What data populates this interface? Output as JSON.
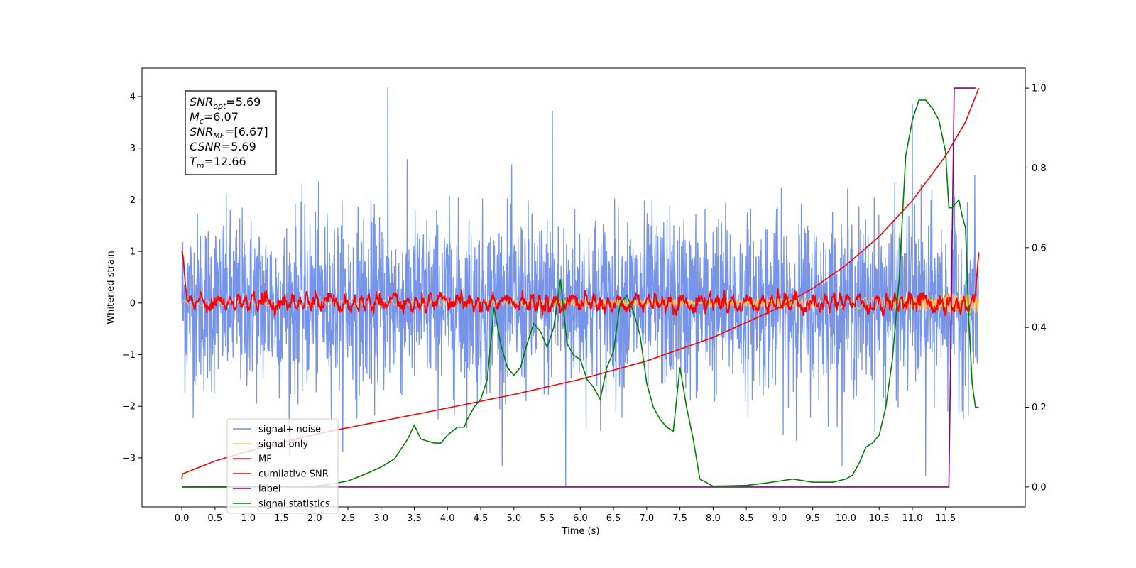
{
  "chart_data": {
    "type": "line",
    "title": "",
    "xlabel": "Time (s)",
    "ylabel": "Whitened strain",
    "xlim": [
      -0.6,
      12.7
    ],
    "ylim": [
      -3.95,
      4.55
    ],
    "y2lim": [
      -0.05,
      1.05
    ],
    "x_ticks": [
      0.0,
      0.5,
      1.0,
      1.5,
      2.0,
      2.5,
      3.0,
      3.5,
      4.0,
      4.5,
      5.0,
      5.5,
      6.0,
      6.5,
      7.0,
      7.5,
      8.0,
      8.5,
      9.0,
      9.5,
      10.0,
      10.5,
      11.0,
      11.5
    ],
    "x_tick_labels": [
      "0.0",
      "0.5",
      "1.0",
      "1.5",
      "2.0",
      "2.5",
      "3.0",
      "3.5",
      "4.0",
      "4.5",
      "5.0",
      "5.5",
      "6.0",
      "6.5",
      "7.0",
      "7.5",
      "8.0",
      "8.5",
      "9.0",
      "9.5",
      "10.0",
      "10.5",
      "11.0",
      "11.5"
    ],
    "y_ticks": [
      -3,
      -2,
      -1,
      0,
      1,
      2,
      3,
      4
    ],
    "y_tick_labels": [
      "−3",
      "−2",
      "−1",
      "0",
      "1",
      "2",
      "3",
      "4"
    ],
    "y2_ticks": [
      0.0,
      0.2,
      0.4,
      0.6,
      0.8,
      1.0
    ],
    "y2_tick_labels": [
      "0.0",
      "0.2",
      "0.4",
      "0.6",
      "0.8",
      "1.0"
    ],
    "grid": false,
    "legend_position": "lower-left",
    "noise": {
      "x_start": 0.0,
      "x_end": 12.0,
      "std": 0.85,
      "min": -3.55,
      "max": 4.18
    },
    "series": [
      {
        "name": "signal+ noise",
        "color": "#6f8ee8",
        "axis": "left",
        "x": [
          0.0,
          3.1,
          5.58,
          5.78,
          11.0,
          11.2,
          12.0
        ],
        "y": [
          0.0,
          4.18,
          3.72,
          -3.55,
          3.85,
          -3.35,
          0.0
        ]
      },
      {
        "name": "signal only",
        "color": "#ffbf60",
        "axis": "left",
        "x": [
          0.0,
          2.0,
          4.0,
          6.0,
          8.0,
          10.0,
          11.0,
          11.5,
          12.0
        ],
        "y": [
          0.05,
          0.05,
          0.05,
          0.06,
          0.08,
          0.1,
          0.14,
          0.18,
          0.2
        ]
      },
      {
        "name": "MF",
        "color": "#ff0000",
        "axis": "left",
        "x": [
          0.0,
          0.02,
          0.05,
          0.08,
          0.15,
          0.3,
          0.6,
          1.0,
          1.5,
          2.0,
          2.5,
          3.0,
          3.5,
          4.0,
          4.5,
          5.0,
          5.5,
          6.0,
          6.5,
          7.0,
          7.5,
          8.0,
          8.5,
          9.0,
          9.5,
          10.0,
          10.5,
          11.0,
          11.5,
          11.9,
          11.95,
          12.0
        ],
        "y": [
          1.0,
          0.9,
          0.4,
          0.05,
          -0.05,
          0.1,
          -0.1,
          0.15,
          -0.1,
          0.2,
          -0.1,
          0.1,
          -0.12,
          0.18,
          -0.1,
          0.15,
          -0.12,
          0.12,
          -0.1,
          0.1,
          -0.1,
          0.12,
          -0.12,
          0.12,
          -0.12,
          0.15,
          -0.15,
          0.18,
          -0.18,
          -0.15,
          0.2,
          0.98
        ]
      },
      {
        "name": "cumilative SNR",
        "color": "#ff0000",
        "axis": "right",
        "x": [
          0.0,
          0.01,
          0.5,
          1.0,
          2.0,
          3.0,
          4.0,
          5.0,
          6.0,
          7.0,
          8.0,
          9.0,
          9.5,
          10.0,
          10.5,
          11.0,
          11.5,
          11.8,
          12.0
        ],
        "y": [
          0.02,
          0.033,
          0.065,
          0.09,
          0.132,
          0.165,
          0.198,
          0.232,
          0.27,
          0.316,
          0.375,
          0.45,
          0.498,
          0.556,
          0.628,
          0.718,
          0.83,
          0.915,
          1.0
        ]
      },
      {
        "name": "label",
        "color": "#800080",
        "axis": "right",
        "x": [
          0.0,
          11.55,
          11.63,
          11.95
        ],
        "y": [
          0.0,
          0.0,
          1.0,
          1.0
        ]
      },
      {
        "name": "signal statistics",
        "color": "#008000",
        "axis": "right",
        "x": [
          0.0,
          1.0,
          2.0,
          2.2,
          2.5,
          2.8,
          3.0,
          3.2,
          3.4,
          3.5,
          3.6,
          3.8,
          3.9,
          4.0,
          4.15,
          4.25,
          4.3,
          4.4,
          4.5,
          4.6,
          4.7,
          4.8,
          4.9,
          5.0,
          5.1,
          5.2,
          5.3,
          5.4,
          5.5,
          5.6,
          5.7,
          5.8,
          5.9,
          6.0,
          6.1,
          6.2,
          6.3,
          6.4,
          6.5,
          6.6,
          6.7,
          6.8,
          6.9,
          7.0,
          7.1,
          7.2,
          7.3,
          7.4,
          7.5,
          7.6,
          7.7,
          7.8,
          8.0,
          8.5,
          8.8,
          9.0,
          9.2,
          9.5,
          9.8,
          10.0,
          10.1,
          10.2,
          10.3,
          10.4,
          10.5,
          10.6,
          10.7,
          10.8,
          10.9,
          11.0,
          11.1,
          11.2,
          11.3,
          11.4,
          11.5,
          11.55,
          11.6,
          11.7,
          11.75,
          11.8,
          11.85,
          11.9,
          11.95,
          12.0
        ],
        "y": [
          0.0,
          0.0,
          0.002,
          0.006,
          0.015,
          0.035,
          0.05,
          0.07,
          0.12,
          0.155,
          0.12,
          0.11,
          0.11,
          0.13,
          0.15,
          0.15,
          0.17,
          0.2,
          0.22,
          0.27,
          0.45,
          0.36,
          0.3,
          0.28,
          0.3,
          0.36,
          0.41,
          0.39,
          0.35,
          0.4,
          0.52,
          0.36,
          0.33,
          0.32,
          0.27,
          0.25,
          0.22,
          0.3,
          0.34,
          0.46,
          0.48,
          0.44,
          0.38,
          0.26,
          0.2,
          0.17,
          0.15,
          0.14,
          0.3,
          0.2,
          0.12,
          0.02,
          0.002,
          0.004,
          0.01,
          0.015,
          0.02,
          0.012,
          0.012,
          0.02,
          0.03,
          0.06,
          0.1,
          0.11,
          0.13,
          0.2,
          0.32,
          0.52,
          0.83,
          0.92,
          0.97,
          0.97,
          0.95,
          0.92,
          0.84,
          0.7,
          0.7,
          0.72,
          0.68,
          0.65,
          0.42,
          0.26,
          0.2,
          0.2
        ]
      }
    ],
    "annotation_lines": [
      {
        "var": "SNR",
        "sub": "opt",
        "value": "=5.69"
      },
      {
        "var": "M",
        "sub": "c",
        "value": "=6.07"
      },
      {
        "var": "SNR",
        "sub": "MF",
        "value": "=[6.67]"
      },
      {
        "var": "CSNR",
        "sub": "",
        "value": "=5.69"
      },
      {
        "var": "T",
        "sub": "m",
        "value": "=12.66"
      }
    ]
  }
}
